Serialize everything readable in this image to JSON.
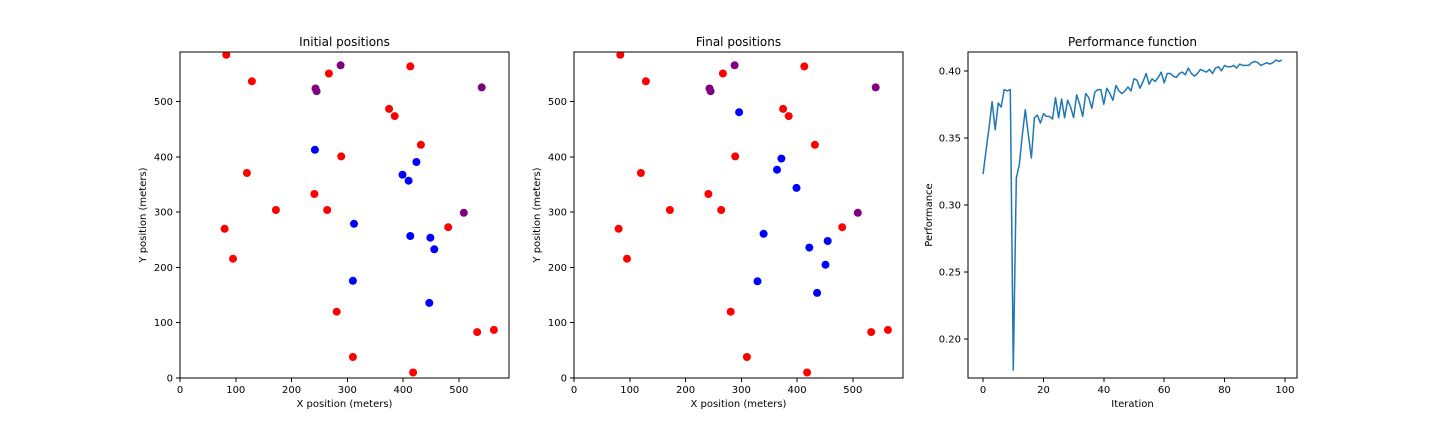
{
  "chart_data": [
    {
      "type": "scatter",
      "title": "Initial positions",
      "xlabel": "X position (meters)",
      "ylabel": "Y position (meters)",
      "xlim": [
        0,
        590
      ],
      "ylim": [
        0,
        590
      ],
      "xticks": [
        0,
        100,
        200,
        300,
        400,
        500
      ],
      "yticks": [
        0,
        100,
        200,
        300,
        400,
        500
      ],
      "grid": false,
      "series": [
        {
          "color": "#ff0000",
          "points": [
            [
              83,
              585
            ],
            [
              129,
              537
            ],
            [
              267,
              551
            ],
            [
              413,
              564
            ],
            [
              375,
              487
            ],
            [
              385,
              474
            ],
            [
              432,
              422
            ],
            [
              289,
              401
            ],
            [
              120,
              371
            ],
            [
              172,
              304
            ],
            [
              241,
              333
            ],
            [
              264,
              304
            ],
            [
              80,
              270
            ],
            [
              95,
              216
            ],
            [
              481,
              273
            ],
            [
              281,
              120
            ],
            [
              310,
              38
            ],
            [
              418,
              10
            ],
            [
              533,
              83
            ],
            [
              563,
              87
            ]
          ]
        },
        {
          "color": "#0000ff",
          "points": [
            [
              242,
              413
            ],
            [
              424,
              391
            ],
            [
              399,
              368
            ],
            [
              410,
              357
            ],
            [
              312,
              279
            ],
            [
              413,
              257
            ],
            [
              449,
              254
            ],
            [
              456,
              233
            ],
            [
              310,
              176
            ],
            [
              447,
              136
            ]
          ]
        },
        {
          "color": "#800080",
          "points": [
            [
              288,
              566
            ],
            [
              243,
              524
            ],
            [
              245,
              519
            ],
            [
              541,
              526
            ],
            [
              509,
              299
            ]
          ]
        }
      ]
    },
    {
      "type": "scatter",
      "title": "Final positions",
      "xlabel": "X position (meters)",
      "ylabel": "Y position (meters)",
      "xlim": [
        0,
        590
      ],
      "ylim": [
        0,
        590
      ],
      "xticks": [
        0,
        100,
        200,
        300,
        400,
        500
      ],
      "yticks": [
        0,
        100,
        200,
        300,
        400,
        500
      ],
      "grid": false,
      "series": [
        {
          "color": "#ff0000",
          "points": [
            [
              83,
              585
            ],
            [
              129,
              537
            ],
            [
              267,
              551
            ],
            [
              413,
              564
            ],
            [
              375,
              487
            ],
            [
              385,
              474
            ],
            [
              432,
              422
            ],
            [
              289,
              401
            ],
            [
              120,
              371
            ],
            [
              172,
              304
            ],
            [
              241,
              333
            ],
            [
              264,
              304
            ],
            [
              80,
              270
            ],
            [
              95,
              216
            ],
            [
              481,
              273
            ],
            [
              281,
              120
            ],
            [
              310,
              38
            ],
            [
              418,
              10
            ],
            [
              533,
              83
            ],
            [
              563,
              87
            ]
          ]
        },
        {
          "color": "#0000ff",
          "points": [
            [
              296,
              481
            ],
            [
              372,
              397
            ],
            [
              364,
              377
            ],
            [
              399,
              344
            ],
            [
              340,
              261
            ],
            [
              422,
              236
            ],
            [
              455,
              248
            ],
            [
              451,
              205
            ],
            [
              329,
              175
            ],
            [
              436,
              154
            ]
          ]
        },
        {
          "color": "#800080",
          "points": [
            [
              288,
              566
            ],
            [
              243,
              524
            ],
            [
              245,
              519
            ],
            [
              541,
              526
            ],
            [
              509,
              299
            ]
          ]
        }
      ]
    },
    {
      "type": "line",
      "title": "Performance function",
      "xlabel": "Iteration",
      "ylabel": "Performance",
      "xlim": [
        -5,
        104
      ],
      "ylim": [
        0.171,
        0.414
      ],
      "xticks": [
        0,
        20,
        40,
        60,
        80,
        100
      ],
      "yticks": [
        0.2,
        0.25,
        0.3,
        0.35,
        0.4
      ],
      "ytick_labels": [
        "0.20",
        "0.25",
        "0.30",
        "0.35",
        "0.40"
      ],
      "grid": false,
      "series": [
        {
          "color": "#1f77b4",
          "x": [
            0,
            1,
            2,
            3,
            4,
            5,
            6,
            7,
            8,
            9,
            10,
            11,
            12,
            13,
            14,
            15,
            16,
            17,
            18,
            19,
            20,
            21,
            22,
            23,
            24,
            25,
            26,
            27,
            28,
            29,
            30,
            31,
            32,
            33,
            34,
            35,
            36,
            37,
            38,
            39,
            40,
            41,
            42,
            43,
            44,
            45,
            46,
            47,
            48,
            49,
            50,
            51,
            52,
            53,
            54,
            55,
            56,
            57,
            58,
            59,
            60,
            61,
            62,
            63,
            64,
            65,
            66,
            67,
            68,
            69,
            70,
            71,
            72,
            73,
            74,
            75,
            76,
            77,
            78,
            79,
            80,
            81,
            82,
            83,
            84,
            85,
            86,
            87,
            88,
            89,
            90,
            91,
            92,
            93,
            94,
            95,
            96,
            97,
            98,
            99
          ],
          "y": [
            0.323,
            0.341,
            0.358,
            0.377,
            0.356,
            0.376,
            0.373,
            0.386,
            0.385,
            0.386,
            0.177,
            0.32,
            0.33,
            0.352,
            0.371,
            0.352,
            0.335,
            0.365,
            0.367,
            0.361,
            0.368,
            0.366,
            0.366,
            0.364,
            0.38,
            0.365,
            0.379,
            0.365,
            0.378,
            0.373,
            0.365,
            0.382,
            0.375,
            0.366,
            0.383,
            0.38,
            0.372,
            0.384,
            0.386,
            0.386,
            0.375,
            0.387,
            0.383,
            0.378,
            0.389,
            0.385,
            0.383,
            0.385,
            0.388,
            0.385,
            0.394,
            0.393,
            0.387,
            0.392,
            0.398,
            0.39,
            0.394,
            0.392,
            0.395,
            0.399,
            0.391,
            0.398,
            0.398,
            0.396,
            0.395,
            0.398,
            0.399,
            0.397,
            0.402,
            0.398,
            0.396,
            0.398,
            0.401,
            0.4,
            0.399,
            0.401,
            0.398,
            0.402,
            0.403,
            0.4,
            0.404,
            0.403,
            0.403,
            0.404,
            0.402,
            0.405,
            0.404,
            0.404,
            0.404,
            0.406,
            0.407,
            0.406,
            0.404,
            0.405,
            0.406,
            0.405,
            0.406,
            0.408,
            0.407,
            0.408
          ]
        }
      ]
    }
  ]
}
